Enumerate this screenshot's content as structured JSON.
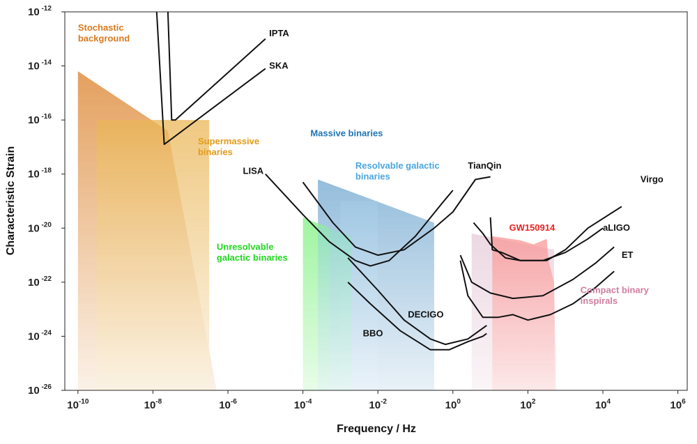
{
  "chart_data": {
    "type": "area",
    "title": "",
    "xlabel": "Frequency / Hz",
    "ylabel": "Characteristic Strain",
    "xscale": "log",
    "yscale": "log",
    "xlim_exp": [
      -10.35,
      6.25
    ],
    "ylim_exp": [
      -26,
      -12
    ],
    "grid": false,
    "x_ticks": [
      {
        "base": "10",
        "exp": "-10",
        "v": -10
      },
      {
        "base": "10",
        "exp": "-8",
        "v": -8
      },
      {
        "base": "10",
        "exp": "-6",
        "v": -6
      },
      {
        "base": "10",
        "exp": "-4",
        "v": -4
      },
      {
        "base": "10",
        "exp": "-2",
        "v": -2
      },
      {
        "base": "10",
        "exp": "0",
        "v": 0
      },
      {
        "base": "10",
        "exp": "2",
        "v": 2
      },
      {
        "base": "10",
        "exp": "4",
        "v": 4
      },
      {
        "base": "10",
        "exp": "6",
        "v": 6
      }
    ],
    "y_ticks": [
      {
        "base": "10",
        "exp": "-12",
        "v": -12
      },
      {
        "base": "10",
        "exp": "-14",
        "v": -14
      },
      {
        "base": "10",
        "exp": "-16",
        "v": -16
      },
      {
        "base": "10",
        "exp": "-18",
        "v": -18
      },
      {
        "base": "10",
        "exp": "-20",
        "v": -20
      },
      {
        "base": "10",
        "exp": "-22",
        "v": -22
      },
      {
        "base": "10",
        "exp": "-24",
        "v": -24
      },
      {
        "base": "10",
        "exp": "-26",
        "v": -26
      }
    ],
    "regions": [
      {
        "name": "Stochastic background",
        "color": "#d97a1e",
        "opacity": 0.85,
        "points": [
          [
            -10,
            -14.2
          ],
          [
            -7.6,
            -16.4
          ],
          [
            -6.3,
            -26
          ],
          [
            -10,
            -26
          ]
        ]
      },
      {
        "name": "Supermassive binaries",
        "color": "#e39b18",
        "opacity": 0.75,
        "points": [
          [
            -9.5,
            -16
          ],
          [
            -6.5,
            -16
          ],
          [
            -6.5,
            -26
          ],
          [
            -9.5,
            -26
          ]
        ]
      },
      {
        "name": "Resolvable galactic binaries",
        "color": "#1f74b4",
        "opacity": 0.8,
        "points": [
          [
            -3.6,
            -18.2
          ],
          [
            -0.5,
            -19.8
          ],
          [
            -0.5,
            -26
          ],
          [
            -3.6,
            -26
          ]
        ]
      },
      {
        "name": "Massive binaries",
        "color": "#5aa3d6",
        "opacity": 0.55,
        "points": [
          [
            -3.0,
            -19
          ],
          [
            -2.0,
            -19
          ],
          [
            -2.0,
            -26
          ],
          [
            -3.0,
            -26
          ]
        ]
      },
      {
        "name": "Unresolvable galactic binaries",
        "color": "#22e622",
        "opacity": 0.85,
        "points": [
          [
            -4.0,
            -19.6
          ],
          [
            -3.3,
            -20.0
          ],
          [
            -3.3,
            -26
          ],
          [
            -4.0,
            -26
          ]
        ]
      },
      {
        "name": "Unresolvable galactic binaries (teal)",
        "color": "#22b88c",
        "opacity": 0.75,
        "points": [
          [
            -3.6,
            -19.9
          ],
          [
            -2.7,
            -20.3
          ],
          [
            -2.7,
            -26
          ],
          [
            -3.6,
            -26
          ]
        ]
      },
      {
        "name": "Compact binary inspirals",
        "color": "#c88aa6",
        "opacity": 0.7,
        "points": [
          [
            0.5,
            -20.2
          ],
          [
            2.7,
            -20.8
          ],
          [
            2.7,
            -26
          ],
          [
            0.5,
            -26
          ]
        ]
      },
      {
        "name": "GW150914",
        "color": "#f21b1b",
        "opacity": 0.75,
        "points": [
          [
            1.05,
            -20.3
          ],
          [
            1.8,
            -20.45
          ],
          [
            2.15,
            -20.6
          ],
          [
            2.5,
            -20.4
          ],
          [
            2.55,
            -21.2
          ],
          [
            2.7,
            -22.0
          ],
          [
            2.75,
            -26
          ],
          [
            1.05,
            -26
          ]
        ]
      }
    ],
    "curves": [
      {
        "name": "IPTA",
        "points": [
          [
            -7.6,
            -12
          ],
          [
            -7.5,
            -16
          ],
          [
            -7.4,
            -16.0
          ],
          [
            -5.0,
            -13.0
          ]
        ]
      },
      {
        "name": "SKA",
        "points": [
          [
            -7.9,
            -12
          ],
          [
            -7.7,
            -16.9
          ],
          [
            -7.6,
            -16.8
          ],
          [
            -5.0,
            -14.1
          ]
        ]
      },
      {
        "name": "LISA",
        "points": [
          [
            -5.0,
            -18.0
          ],
          [
            -4.0,
            -19.5
          ],
          [
            -3.3,
            -20.5
          ],
          [
            -2.6,
            -21.2
          ],
          [
            -2.2,
            -21.4
          ],
          [
            -1.7,
            -21.2
          ],
          [
            -1.0,
            -20.3
          ],
          [
            -0.3,
            -19.1
          ],
          [
            0.0,
            -18.6
          ]
        ]
      },
      {
        "name": "TianQin",
        "points": [
          [
            -4.0,
            -18.3
          ],
          [
            -3.2,
            -19.8
          ],
          [
            -2.6,
            -20.7
          ],
          [
            -2.0,
            -21.0
          ],
          [
            -1.3,
            -20.8
          ],
          [
            -0.5,
            -20.0
          ],
          [
            0.0,
            -19.4
          ],
          [
            0.6,
            -18.2
          ],
          [
            1.0,
            -18.1
          ]
        ]
      },
      {
        "name": "DECIGO",
        "points": [
          [
            -2.8,
            -21.1
          ],
          [
            -2.0,
            -22.3
          ],
          [
            -1.3,
            -23.4
          ],
          [
            -0.6,
            -24.1
          ],
          [
            -0.2,
            -24.3
          ],
          [
            0.4,
            -24.1
          ],
          [
            0.9,
            -23.6
          ]
        ]
      },
      {
        "name": "BBO",
        "points": [
          [
            -2.8,
            -22.0
          ],
          [
            -2.2,
            -22.8
          ],
          [
            -1.4,
            -23.8
          ],
          [
            -0.6,
            -24.5
          ],
          [
            -0.1,
            -24.5
          ],
          [
            0.4,
            -24.2
          ],
          [
            0.8,
            -24.0
          ],
          [
            0.9,
            -23.9
          ]
        ]
      },
      {
        "name": "aLIGO",
        "points": [
          [
            0.55,
            -19.8
          ],
          [
            0.8,
            -20.2
          ],
          [
            1.0,
            -20.6
          ],
          [
            1.4,
            -21.1
          ],
          [
            1.8,
            -21.2
          ],
          [
            2.4,
            -21.2
          ],
          [
            3.0,
            -20.9
          ],
          [
            3.6,
            -20.4
          ],
          [
            4.0,
            -20.0
          ]
        ]
      },
      {
        "name": "Virgo",
        "points": [
          [
            1.0,
            -19.6
          ],
          [
            1.05,
            -20.8
          ],
          [
            1.3,
            -20.9
          ],
          [
            1.8,
            -21.2
          ],
          [
            2.5,
            -21.2
          ],
          [
            3.0,
            -20.8
          ],
          [
            3.6,
            -20.0
          ],
          [
            4.5,
            -19.2
          ]
        ]
      },
      {
        "name": "ET",
        "points": [
          [
            0.2,
            -21.2
          ],
          [
            0.4,
            -22.5
          ],
          [
            0.8,
            -23.3
          ],
          [
            1.2,
            -23.3
          ],
          [
            1.6,
            -23.2
          ],
          [
            2.0,
            -23.4
          ],
          [
            2.6,
            -23.2
          ],
          [
            3.2,
            -22.8
          ],
          [
            3.8,
            -22.2
          ],
          [
            4.3,
            -21.6
          ]
        ]
      },
      {
        "name": "Virgo (lower)",
        "points": [
          [
            0.2,
            -21.0
          ],
          [
            0.5,
            -22.0
          ],
          [
            1.0,
            -22.4
          ],
          [
            1.6,
            -22.6
          ],
          [
            2.4,
            -22.5
          ],
          [
            3.2,
            -21.9
          ],
          [
            3.8,
            -21.3
          ],
          [
            4.3,
            -20.7
          ]
        ]
      }
    ],
    "labels": [
      {
        "text": "Stochastic",
        "x": -10.0,
        "y": -12.7,
        "color": "#d97a1e",
        "cls": "region"
      },
      {
        "text": "background",
        "x": -10.0,
        "y": -13.1,
        "color": "#d97a1e",
        "cls": "region"
      },
      {
        "text": "Supermassive",
        "x": -6.8,
        "y": -16.9,
        "color": "#e39b18",
        "cls": "region"
      },
      {
        "text": "binaries",
        "x": -6.8,
        "y": -17.3,
        "color": "#e39b18",
        "cls": "region"
      },
      {
        "text": "Massive binaries",
        "x": -3.8,
        "y": -16.6,
        "color": "#1f74b4",
        "cls": "region"
      },
      {
        "text": "Resolvable galactic",
        "x": -2.6,
        "y": -17.8,
        "color": "#4aa6e0",
        "cls": "region"
      },
      {
        "text": "binaries",
        "x": -2.6,
        "y": -18.2,
        "color": "#4aa6e0",
        "cls": "region"
      },
      {
        "text": "Unresolvable",
        "x": -6.3,
        "y": -20.8,
        "color": "#22d622",
        "cls": "region"
      },
      {
        "text": "galactic binaries",
        "x": -6.3,
        "y": -21.2,
        "color": "#22d622",
        "cls": "region"
      },
      {
        "text": "GW150914",
        "x": 1.5,
        "y": -20.1,
        "color": "#ee2222",
        "cls": "region"
      },
      {
        "text": "Compact binary",
        "x": 3.4,
        "y": -22.4,
        "color": "#d07ea0",
        "cls": "region"
      },
      {
        "text": "inspirals",
        "x": 3.4,
        "y": -22.8,
        "color": "#d07ea0",
        "cls": "region"
      },
      {
        "text": "IPTA",
        "x": -4.9,
        "y": -12.9,
        "color": "#111111",
        "cls": "det"
      },
      {
        "text": "SKA",
        "x": -4.9,
        "y": -14.1,
        "color": "#111111",
        "cls": "det"
      },
      {
        "text": "LISA",
        "x": -5.6,
        "y": -18.0,
        "color": "#111111",
        "cls": "det"
      },
      {
        "text": "TianQin",
        "x": 0.4,
        "y": -17.8,
        "color": "#111111",
        "cls": "det"
      },
      {
        "text": "Virgo",
        "x": 5.0,
        "y": -18.3,
        "color": "#111111",
        "cls": "det"
      },
      {
        "text": "aLIGO",
        "x": 4.0,
        "y": -20.1,
        "color": "#111111",
        "cls": "det"
      },
      {
        "text": "ET",
        "x": 4.5,
        "y": -21.1,
        "color": "#111111",
        "cls": "det"
      },
      {
        "text": "DECIGO",
        "x": -1.2,
        "y": -23.3,
        "color": "#111111",
        "cls": "det"
      },
      {
        "text": "BBO",
        "x": -2.4,
        "y": -24.0,
        "color": "#111111",
        "cls": "det"
      }
    ]
  }
}
